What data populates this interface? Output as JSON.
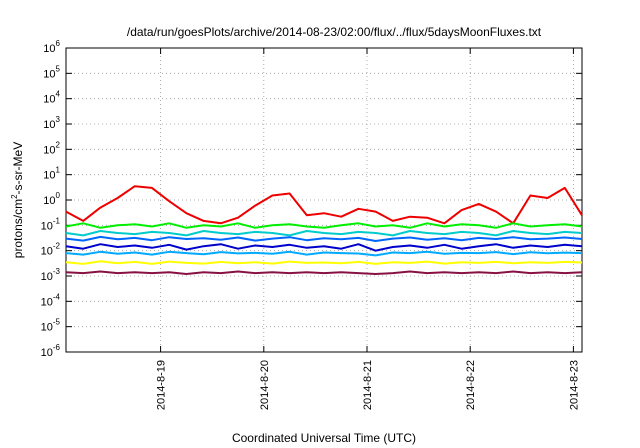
{
  "chart_data": {
    "type": "line",
    "title": "/data/run/goesPlots/archive/2014-08-23/02:00/flux/../flux/5daysMoonFluxes.txt",
    "xlabel": "Coordinated Universal Time (UTC)",
    "ylabel": {
      "pre": "protons/cm",
      "sup": "2",
      "post": "-s-sr-MeV"
    },
    "y_scale": "log",
    "ylim": [
      1e-06,
      1000000.0
    ],
    "y_ticks": [
      {
        "base": "10",
        "exp": "-6",
        "value": 1e-06
      },
      {
        "base": "10",
        "exp": "-5",
        "value": 1e-05
      },
      {
        "base": "10",
        "exp": "-4",
        "value": 0.0001
      },
      {
        "base": "10",
        "exp": "-3",
        "value": 0.001
      },
      {
        "base": "10",
        "exp": "-2",
        "value": 0.01
      },
      {
        "base": "10",
        "exp": "-1",
        "value": 0.1
      },
      {
        "base": "10",
        "exp": "0",
        "value": 1
      },
      {
        "base": "10",
        "exp": "1",
        "value": 10
      },
      {
        "base": "10",
        "exp": "2",
        "value": 100
      },
      {
        "base": "10",
        "exp": "3",
        "value": 1000
      },
      {
        "base": "10",
        "exp": "4",
        "value": 10000
      },
      {
        "base": "10",
        "exp": "5",
        "value": 100000
      },
      {
        "base": "10",
        "exp": "6",
        "value": 1000000
      }
    ],
    "xlim": [
      "2014-08-18T02:00",
      "2014-08-23T02:00"
    ],
    "x_ticks": [
      {
        "label": "2014-8-19",
        "value": "2014-08-19T00:00"
      },
      {
        "label": "2014-8-20",
        "value": "2014-08-20T00:00"
      },
      {
        "label": "2014-8-21",
        "value": "2014-08-21T00:00"
      },
      {
        "label": "2014-8-22",
        "value": "2014-08-22T00:00"
      },
      {
        "label": "2014-8-23",
        "value": "2014-08-23T00:00"
      }
    ],
    "grid": true,
    "x": [
      "2014-08-18T02:00",
      "2014-08-18T06:00",
      "2014-08-18T10:00",
      "2014-08-18T14:00",
      "2014-08-18T18:00",
      "2014-08-18T22:00",
      "2014-08-19T02:00",
      "2014-08-19T06:00",
      "2014-08-19T10:00",
      "2014-08-19T14:00",
      "2014-08-19T18:00",
      "2014-08-19T22:00",
      "2014-08-20T02:00",
      "2014-08-20T06:00",
      "2014-08-20T10:00",
      "2014-08-20T14:00",
      "2014-08-20T18:00",
      "2014-08-20T22:00",
      "2014-08-21T02:00",
      "2014-08-21T06:00",
      "2014-08-21T10:00",
      "2014-08-21T14:00",
      "2014-08-21T18:00",
      "2014-08-21T22:00",
      "2014-08-22T02:00",
      "2014-08-22T06:00",
      "2014-08-22T10:00",
      "2014-08-22T14:00",
      "2014-08-22T18:00",
      "2014-08-22T22:00",
      "2014-08-23T02:00"
    ],
    "series": [
      {
        "color": "#ee0000",
        "values": [
          0.35,
          0.15,
          0.5,
          1.2,
          3.5,
          3.0,
          0.9,
          0.3,
          0.15,
          0.12,
          0.2,
          0.6,
          1.5,
          1.8,
          0.25,
          0.3,
          0.22,
          0.45,
          0.35,
          0.15,
          0.22,
          0.2,
          0.12,
          0.4,
          0.7,
          0.35,
          0.12,
          1.5,
          1.2,
          3.0,
          0.25
        ]
      },
      {
        "color": "#00ee00",
        "values": [
          0.09,
          0.12,
          0.08,
          0.1,
          0.11,
          0.09,
          0.12,
          0.08,
          0.1,
          0.09,
          0.12,
          0.08,
          0.1,
          0.11,
          0.09,
          0.08,
          0.1,
          0.12,
          0.09,
          0.1,
          0.08,
          0.12,
          0.09,
          0.11,
          0.1,
          0.08,
          0.12,
          0.09,
          0.1,
          0.11,
          0.09
        ]
      },
      {
        "color": "#00cccc",
        "values": [
          0.05,
          0.04,
          0.06,
          0.05,
          0.045,
          0.055,
          0.05,
          0.04,
          0.06,
          0.05,
          0.045,
          0.055,
          0.05,
          0.04,
          0.06,
          0.05,
          0.045,
          0.055,
          0.05,
          0.04,
          0.06,
          0.05,
          0.045,
          0.055,
          0.05,
          0.04,
          0.06,
          0.05,
          0.045,
          0.055,
          0.05
        ]
      },
      {
        "color": "#0066ff",
        "values": [
          0.03,
          0.025,
          0.035,
          0.028,
          0.032,
          0.026,
          0.034,
          0.029,
          0.031,
          0.027,
          0.033,
          0.025,
          0.03,
          0.034,
          0.026,
          0.031,
          0.028,
          0.032,
          0.024,
          0.03,
          0.033,
          0.027,
          0.031,
          0.026,
          0.032,
          0.029,
          0.034,
          0.028,
          0.03,
          0.033,
          0.029
        ]
      },
      {
        "color": "#0000cc",
        "values": [
          0.015,
          0.012,
          0.018,
          0.014,
          0.016,
          0.013,
          0.017,
          0.011,
          0.015,
          0.018,
          0.012,
          0.016,
          0.014,
          0.017,
          0.013,
          0.015,
          0.012,
          0.018,
          0.01,
          0.014,
          0.016,
          0.013,
          0.017,
          0.012,
          0.015,
          0.018,
          0.013,
          0.016,
          0.014,
          0.017,
          0.015
        ]
      },
      {
        "color": "#00aaff",
        "values": [
          0.008,
          0.007,
          0.009,
          0.0075,
          0.0085,
          0.007,
          0.009,
          0.008,
          0.0072,
          0.0088,
          0.0078,
          0.0082,
          0.0075,
          0.009,
          0.007,
          0.0085,
          0.008,
          0.0077,
          0.0065,
          0.0085,
          0.008,
          0.009,
          0.0075,
          0.0082,
          0.008,
          0.0088,
          0.0073,
          0.0086,
          0.0079,
          0.0084,
          0.008
        ]
      },
      {
        "color": "#ffff00",
        "values": [
          0.0035,
          0.003,
          0.0038,
          0.0032,
          0.0036,
          0.003,
          0.0037,
          0.0033,
          0.0031,
          0.0036,
          0.0032,
          0.0035,
          0.0031,
          0.0037,
          0.0033,
          0.0034,
          0.0032,
          0.0036,
          0.003,
          0.0035,
          0.0033,
          0.0037,
          0.0031,
          0.0035,
          0.0033,
          0.0036,
          0.0032,
          0.0035,
          0.0033,
          0.0036,
          0.0034
        ]
      },
      {
        "color": "#881144",
        "values": [
          0.0014,
          0.0013,
          0.0015,
          0.0013,
          0.0014,
          0.0013,
          0.0014,
          0.0012,
          0.0014,
          0.0013,
          0.0015,
          0.0013,
          0.0014,
          0.0013,
          0.0014,
          0.0013,
          0.0014,
          0.0013,
          0.0012,
          0.0013,
          0.0015,
          0.0013,
          0.0014,
          0.0013,
          0.0014,
          0.0013,
          0.0015,
          0.0013,
          0.0014,
          0.0013,
          0.0014
        ]
      }
    ]
  }
}
